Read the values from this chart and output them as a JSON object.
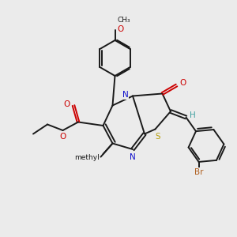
{
  "background_color": "#ebebeb",
  "bond_color": "#1a1a1a",
  "n_color": "#1010cc",
  "s_color": "#b8a010",
  "o_color": "#cc0000",
  "h_color": "#40a0a0",
  "br_color": "#b06020",
  "figsize": [
    3.0,
    3.0
  ],
  "dpi": 100,
  "xlim": [
    0,
    10
  ],
  "ylim": [
    0,
    10
  ],
  "bond_lw": 1.4,
  "dbl_sep": 0.13,
  "font_size_atom": 7.5,
  "font_size_small": 6.5
}
